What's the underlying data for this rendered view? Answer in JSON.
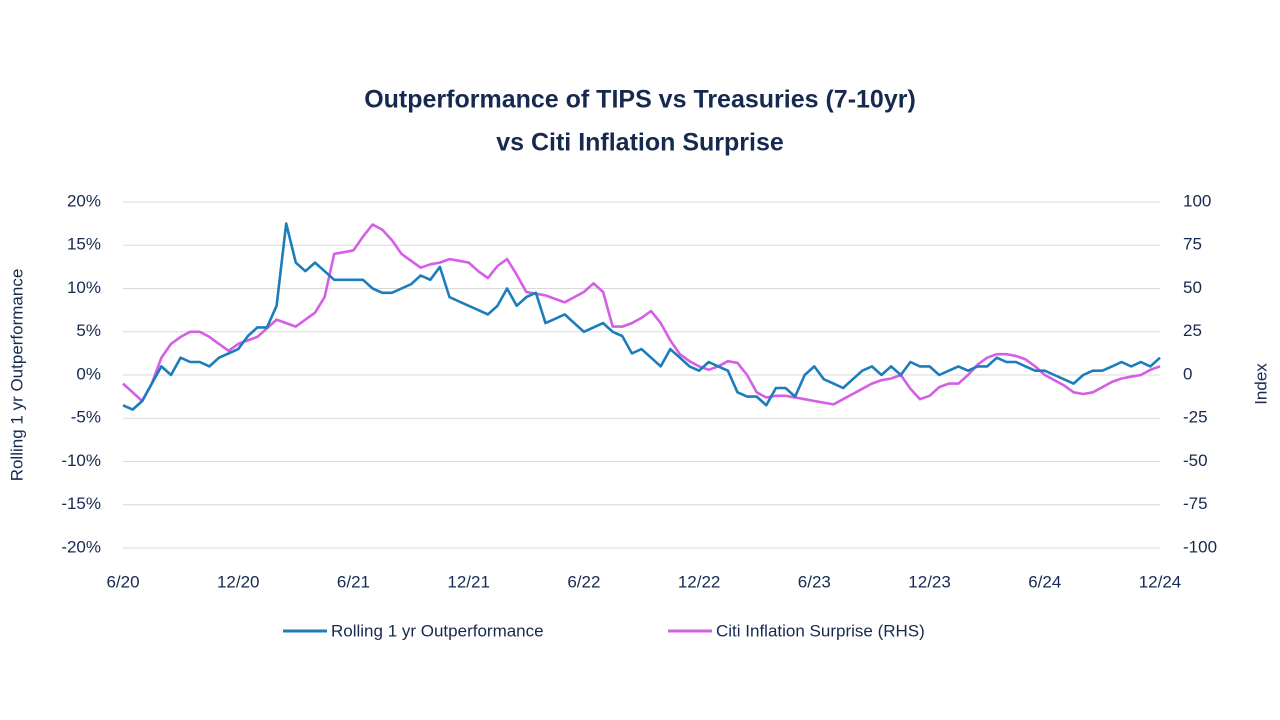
{
  "chart_data": {
    "type": "line",
    "title": "Outperformance of TIPS vs Treasuries (7-10yr)",
    "subtitle": "vs Citi Inflation Surprise",
    "y_label": "Rolling 1 yr Outperformance",
    "y2_label": "Index",
    "categories": [
      "6/20",
      null,
      null,
      null,
      null,
      null,
      null,
      null,
      null,
      null,
      null,
      null,
      "12/20",
      null,
      null,
      null,
      null,
      null,
      null,
      null,
      null,
      null,
      null,
      null,
      "6/21",
      null,
      null,
      null,
      null,
      null,
      null,
      null,
      null,
      null,
      null,
      null,
      "12/21",
      null,
      null,
      null,
      null,
      null,
      null,
      null,
      null,
      null,
      null,
      null,
      "6/22",
      null,
      null,
      null,
      null,
      null,
      null,
      null,
      null,
      null,
      null,
      null,
      "12/22",
      null,
      null,
      null,
      null,
      null,
      null,
      null,
      null,
      null,
      null,
      null,
      "6/23",
      null,
      null,
      null,
      null,
      null,
      null,
      null,
      null,
      null,
      null,
      null,
      "12/23",
      null,
      null,
      null,
      null,
      null,
      null,
      null,
      null,
      null,
      null,
      null,
      "6/24",
      null,
      null,
      null,
      null,
      null,
      null,
      null,
      null,
      null,
      null,
      null,
      "12/24"
    ],
    "series": [
      {
        "name": "Rolling 1 yr Outperformance",
        "color": "#1b7dbb",
        "axis": "y",
        "values": [
          -3.5,
          -4,
          -3,
          -1,
          1,
          0,
          2,
          1.5,
          1.5,
          1,
          2,
          2.5,
          3,
          4.5,
          5.5,
          5.5,
          8,
          17.5,
          13,
          12,
          13,
          12,
          11,
          11,
          11,
          11,
          10,
          9.5,
          9.5,
          10,
          10.5,
          11.5,
          11,
          12.5,
          9,
          8.5,
          8,
          7.5,
          7,
          8,
          10,
          8,
          9,
          9.5,
          6,
          6.5,
          7,
          6,
          5,
          5.5,
          6,
          5,
          4.5,
          2.5,
          3,
          2,
          1,
          3,
          2,
          1,
          0.5,
          1.5,
          1,
          0.5,
          -2,
          -2.5,
          -2.5,
          -3.5,
          -1.5,
          -1.5,
          -2.5,
          0,
          1,
          -0.5,
          -1,
          -1.5,
          -0.5,
          0.5,
          1,
          0,
          1,
          0,
          1.5,
          1,
          1,
          0,
          0.5,
          1,
          0.5,
          1,
          1,
          2,
          1.5,
          1.5,
          1,
          0.5,
          0.5,
          0,
          -0.5,
          -1,
          0,
          0.5,
          0.5,
          1,
          1.5,
          1,
          1.5,
          1,
          2
        ]
      },
      {
        "name": "Citi Inflation Surprise (RHS)",
        "color": "#d55ee6",
        "axis": "y2",
        "values": [
          -5,
          -10,
          -15,
          -5,
          10,
          18,
          22,
          25,
          25,
          22,
          18,
          14,
          18,
          20,
          22,
          27,
          32,
          30,
          28,
          32,
          36,
          45,
          70,
          71,
          72,
          80,
          87,
          84,
          78,
          70,
          66,
          62,
          64,
          65,
          67,
          66,
          65,
          60,
          56,
          63,
          67,
          58,
          48,
          47,
          46,
          44,
          42,
          45,
          48,
          53,
          48,
          28,
          28,
          30,
          33,
          37,
          30,
          20,
          12,
          8,
          5,
          3,
          5,
          8,
          7,
          0,
          -10,
          -13,
          -12,
          -12,
          -13,
          -14,
          -15,
          -16,
          -17,
          -14,
          -11,
          -8,
          -5,
          -3,
          -2,
          0,
          -8,
          -14,
          -12,
          -7,
          -5,
          -5,
          0,
          6,
          10,
          12,
          12,
          11,
          9,
          5,
          0,
          -3,
          -6,
          -10,
          -11,
          -10,
          -7,
          -4,
          -2,
          -1,
          0,
          3,
          5
        ]
      }
    ],
    "ylim": [
      -20,
      20
    ],
    "yticks": [
      {
        "value": -20,
        "label": "-20%"
      },
      {
        "value": -15,
        "label": "-15%"
      },
      {
        "value": -10,
        "label": "-10%"
      },
      {
        "value": -5,
        "label": "-5%"
      },
      {
        "value": 0,
        "label": "0%"
      },
      {
        "value": 5,
        "label": "5%"
      },
      {
        "value": 10,
        "label": "10%"
      },
      {
        "value": 15,
        "label": "15%"
      },
      {
        "value": 20,
        "label": "20%"
      }
    ],
    "y2lim": [
      -100,
      100
    ],
    "y2ticks": [
      -100,
      -75,
      -50,
      -25,
      0,
      25,
      50,
      75,
      100
    ],
    "grid": true,
    "legend": "bottom"
  }
}
